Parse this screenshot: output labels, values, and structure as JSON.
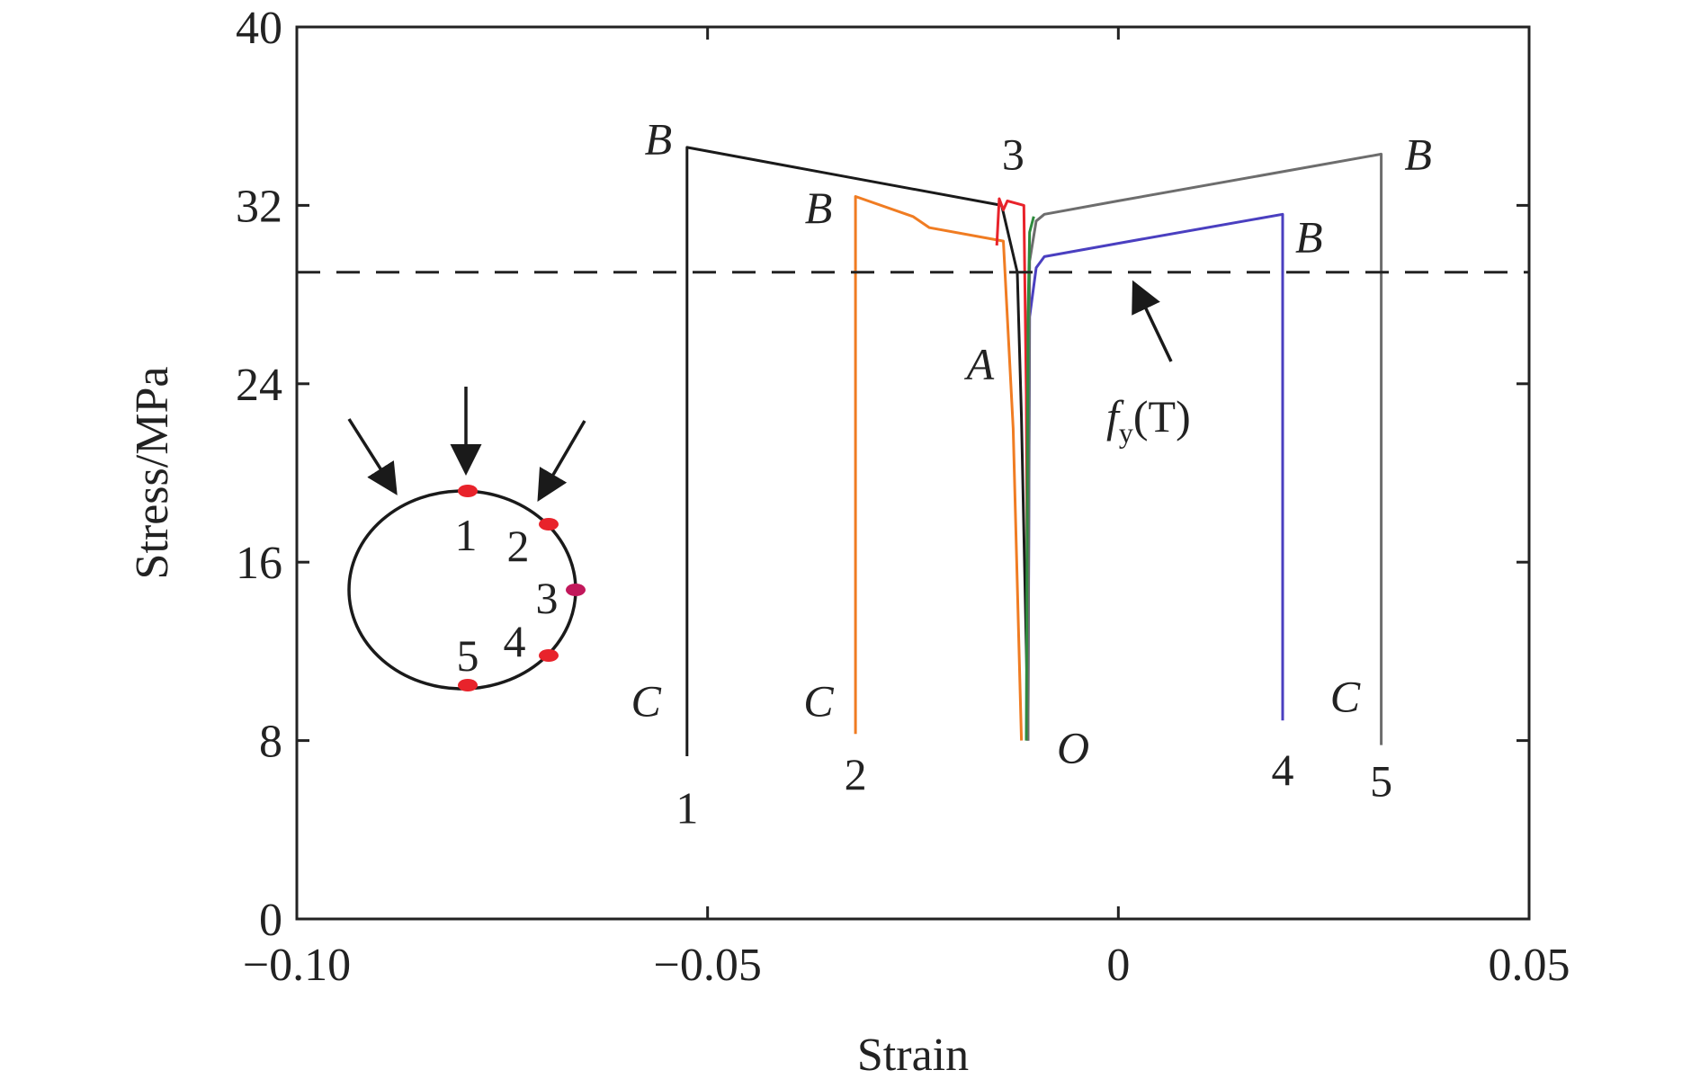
{
  "chart_data": {
    "type": "line",
    "title": "",
    "xlabel": "Strain",
    "ylabel": "Stress/MPa",
    "xlim": [
      -0.1,
      0.05
    ],
    "ylim": [
      0,
      40
    ],
    "x_ticks": [
      -0.1,
      -0.05,
      0,
      0.05
    ],
    "x_tick_labels": [
      "−0.10",
      "−0.05",
      "0",
      "0.05"
    ],
    "y_ticks": [
      0,
      8,
      16,
      24,
      32,
      40
    ],
    "y_tick_labels": [
      "0",
      "8",
      "16",
      "24",
      "32",
      "40"
    ],
    "grid": false,
    "reference_line": {
      "y": 29.0,
      "style": "dashed",
      "label": "f_y(T)",
      "label_main": "f",
      "label_sub": "y",
      "label_arg": "(T)"
    },
    "series": [
      {
        "label": "1",
        "color": "#1a1a1a",
        "x": [
          -0.011,
          -0.0118,
          -0.0123,
          -0.0142,
          -0.0525,
          -0.0525
        ],
        "y": [
          8.5,
          22.5,
          29.0,
          32.0,
          34.6,
          7.3
        ]
      },
      {
        "label": "2",
        "color": "#f07c22",
        "x": [
          -0.0118,
          -0.0128,
          -0.014,
          -0.023,
          -0.025,
          -0.032,
          -0.032
        ],
        "y": [
          8.0,
          22.0,
          30.4,
          31.0,
          31.5,
          32.4,
          8.3
        ]
      },
      {
        "label": "3",
        "color": "#e8232b",
        "x": [
          -0.011,
          -0.0112,
          -0.0115,
          -0.0135,
          -0.014,
          -0.0145,
          -0.0148
        ],
        "y": [
          8.0,
          23.5,
          32.0,
          32.2,
          31.8,
          32.3,
          30.2
        ]
      },
      {
        "label": "4",
        "color": "#4a3fc0",
        "x": [
          -0.011,
          -0.0108,
          -0.01,
          -0.009,
          0.0,
          0.02,
          0.02
        ],
        "y": [
          8.0,
          27.0,
          29.2,
          29.7,
          30.3,
          31.6,
          8.9
        ]
      },
      {
        "label": "5",
        "color": "#6d6d6d",
        "x": [
          -0.011,
          -0.0108,
          -0.01,
          -0.009,
          0.0,
          0.032,
          0.032
        ],
        "y": [
          8.0,
          29.5,
          31.3,
          31.6,
          32.2,
          34.3,
          7.8
        ]
      },
      {
        "label": "",
        "color": "#2e8b3d",
        "x": [
          -0.0112,
          -0.011,
          -0.0108,
          -0.0103
        ],
        "y": [
          8.0,
          27.0,
          30.8,
          31.5
        ]
      }
    ],
    "annotations": [
      {
        "text": "B",
        "italic": true,
        "x": -0.056,
        "y": 34.3
      },
      {
        "text": "B",
        "italic": true,
        "x": -0.0365,
        "y": 31.2
      },
      {
        "text": "B",
        "italic": true,
        "x": 0.0365,
        "y": 33.6
      },
      {
        "text": "B",
        "italic": true,
        "x": 0.0232,
        "y": 29.9
      },
      {
        "text": "3",
        "italic": false,
        "x": -0.0128,
        "y": 33.6
      },
      {
        "text": "A",
        "italic": true,
        "x": -0.0168,
        "y": 24.2
      },
      {
        "text": "O",
        "italic": true,
        "x": -0.0055,
        "y": 7.0
      },
      {
        "text": "C",
        "italic": true,
        "x": -0.0575,
        "y": 9.1
      },
      {
        "text": "C",
        "italic": true,
        "x": -0.0365,
        "y": 9.1
      },
      {
        "text": "C",
        "italic": true,
        "x": 0.0276,
        "y": 9.3
      },
      {
        "text": "1",
        "italic": false,
        "x": -0.0525,
        "y": 4.3
      },
      {
        "text": "2",
        "italic": false,
        "x": -0.032,
        "y": 5.8
      },
      {
        "text": "4",
        "italic": false,
        "x": 0.02,
        "y": 6.0
      },
      {
        "text": "5",
        "italic": false,
        "x": 0.032,
        "y": 5.5
      }
    ],
    "inset": {
      "description": "circular cross-section with loading arrows and measuring points",
      "points": [
        {
          "label": "1",
          "color": "#e8232b"
        },
        {
          "label": "2",
          "color": "#e8232b"
        },
        {
          "label": "3",
          "color": "#c2185b"
        },
        {
          "label": "4",
          "color": "#e8232b"
        },
        {
          "label": "5",
          "color": "#e8232b"
        }
      ]
    }
  }
}
